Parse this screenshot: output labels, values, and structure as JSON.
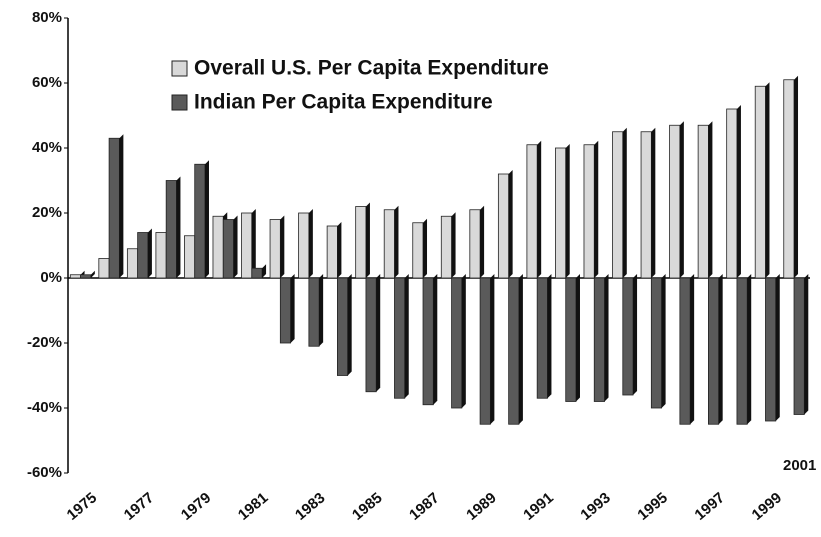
{
  "chart_data": {
    "type": "bar",
    "categories": [
      "1975",
      null,
      "1977",
      null,
      "1979",
      null,
      "1981",
      null,
      "1983",
      null,
      "1985",
      null,
      "1987",
      null,
      "1989",
      null,
      "1991",
      null,
      "1993",
      null,
      "1995",
      null,
      "1997",
      null,
      "1999",
      null
    ],
    "series": [
      {
        "name": "Overall U.S. Per Capita Expenditure",
        "color": "#d9d9d9",
        "values": [
          1,
          6,
          9,
          14,
          13,
          19,
          20,
          18,
          20,
          16,
          22,
          21,
          17,
          19,
          21,
          32,
          41,
          40,
          41,
          45,
          45,
          47,
          47,
          52,
          59,
          61
        ]
      },
      {
        "name": "Indian Per Capita Expenditure",
        "color": "#5a5a5a",
        "values": [
          1,
          43,
          14,
          30,
          35,
          18,
          3,
          -20,
          -21,
          -30,
          -35,
          -37,
          -39,
          -40,
          -45,
          -45,
          -37,
          -38,
          -38,
          -36,
          -40,
          -45,
          -45,
          -45,
          -44,
          -42
        ]
      }
    ],
    "annotation": "2001",
    "ylim": [
      -60,
      80
    ],
    "yticks": [
      {
        "value": -60,
        "label": "-60%"
      },
      {
        "value": -40,
        "label": "-40%"
      },
      {
        "value": -20,
        "label": "-20%"
      },
      {
        "value": 0,
        "label": "0%"
      },
      {
        "value": 20,
        "label": "20%"
      },
      {
        "value": 40,
        "label": "40%"
      },
      {
        "value": 60,
        "label": "60%"
      },
      {
        "value": 80,
        "label": "80%"
      }
    ],
    "legend": "upper left"
  }
}
